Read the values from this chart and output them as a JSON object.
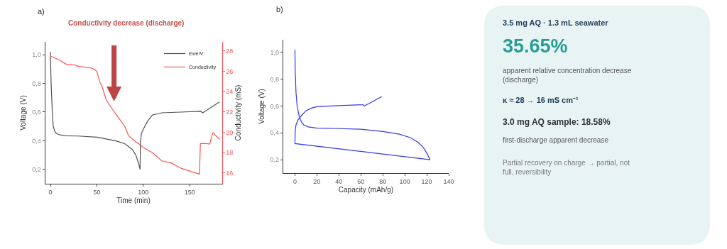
{
  "chart_data": [
    {
      "type": "line",
      "title": "a)",
      "xlabel": "Time (min)",
      "ylabel": "Voltage (V)",
      "y2label": "Conductivity (mS)",
      "annotations": [
        "Conductivity decrease (discharge)"
      ],
      "xlim": [
        -5.8,
        184.7
      ],
      "xticks": [
        0,
        50,
        100,
        150
      ],
      "ylim": [
        0.1,
        1.09
      ],
      "yticks": [
        {
          "value": 0.2,
          "label": "0,2"
        },
        {
          "value": 0.4,
          "label": "0,4"
        },
        {
          "value": 0.6,
          "label": "0,6"
        },
        {
          "value": 0.8,
          "label": "0,8"
        },
        {
          "value": 1.0,
          "label": "1,0"
        }
      ],
      "y2lim": [
        14.95,
        28.9
      ],
      "y2ticks": [
        16,
        18,
        20,
        22,
        24,
        26,
        28
      ],
      "legend": "top right",
      "series": [
        {
          "name": "Ewe/V",
          "color": "#505050",
          "x": [
            0,
            0.5,
            1,
            2,
            3,
            5,
            8,
            15,
            30,
            50,
            70,
            80,
            88,
            92,
            95,
            96.5,
            97,
            98,
            100,
            105,
            110,
            120,
            140,
            162,
            164,
            170,
            182
          ],
          "values": [
            1.02,
            0.85,
            0.75,
            0.6,
            0.5,
            0.46,
            0.445,
            0.435,
            0.433,
            0.425,
            0.4,
            0.38,
            0.34,
            0.3,
            0.24,
            0.2,
            0.4,
            0.45,
            0.48,
            0.54,
            0.58,
            0.595,
            0.6,
            0.605,
            0.595,
            0.62,
            0.67
          ]
        },
        {
          "name": "Conductivity",
          "color": "#ff5050",
          "axis": "y2",
          "x": [
            0,
            10,
            17,
            25,
            30,
            45,
            47,
            50,
            53,
            56,
            60,
            65,
            72,
            80,
            84,
            90,
            97,
            100,
            110,
            120,
            130,
            140,
            150,
            160.6,
            161.5,
            168,
            171.5,
            175,
            182
          ],
          "values": [
            27.5,
            27.1,
            26.7,
            26.65,
            26.5,
            26.3,
            26.2,
            26.0,
            25.0,
            24.4,
            23.2,
            22.5,
            21.6,
            20.6,
            19.7,
            19.2,
            18.75,
            18.5,
            18.0,
            17.2,
            17.0,
            16.5,
            16.2,
            15.9,
            18.9,
            18.9,
            18.85,
            20.0,
            19.3
          ]
        }
      ]
    },
    {
      "type": "line",
      "title": "b)",
      "xlabel": "Capacity (mAh/g)",
      "ylabel": "Voltage (V)",
      "xlim": [
        -10.7,
        140
      ],
      "xticks": [
        0,
        20,
        40,
        60,
        80,
        100,
        120,
        140
      ],
      "ylim": [
        0.1,
        1.095
      ],
      "yticks": [
        {
          "value": 0.2,
          "label": "0,2"
        },
        {
          "value": 0.4,
          "label": "0,4"
        },
        {
          "value": 0.6,
          "label": "0,6"
        },
        {
          "value": 0.8,
          "label": "0,8"
        },
        {
          "value": 1.0,
          "label": "1,0"
        }
      ],
      "series": [
        {
          "color": "#3636ee",
          "x": [
            0,
            0.3,
            1,
            2,
            4,
            6,
            8,
            12,
            20,
            40,
            60,
            80,
            95,
            105,
            112,
            117,
            120,
            123,
            0,
            0.3,
            1,
            3,
            6,
            10,
            15,
            20,
            40,
            62,
            63,
            79
          ],
          "values": [
            1.02,
            0.85,
            0.7,
            0.6,
            0.52,
            0.48,
            0.46,
            0.445,
            0.435,
            0.432,
            0.428,
            0.41,
            0.39,
            0.365,
            0.33,
            0.29,
            0.25,
            0.2,
            0.32,
            0.42,
            0.46,
            0.5,
            0.53,
            0.565,
            0.585,
            0.595,
            0.603,
            0.61,
            0.6,
            0.67
          ]
        }
      ]
    },
    {
      "type": "other",
      "title": "3.5 mg AQ · 1.3 mL seawater",
      "annotations": [
        "35.65%",
        "apparent relative concentration decrease (discharge)",
        "κ ≈ 28 → 16 mS cm⁻¹",
        "3.0 mg AQ sample: 18.58%",
        "first-discharge apparent decrease",
        "Partial recovery on charge → partial, not full, reversibility"
      ]
    }
  ]
}
